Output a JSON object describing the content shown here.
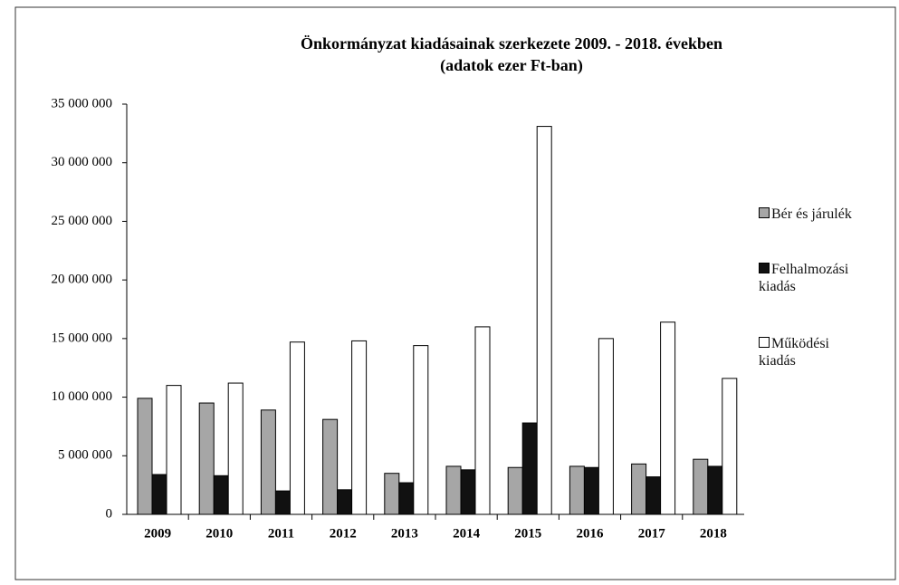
{
  "chart_data": {
    "type": "bar",
    "title": "Önkormányzat kiadásainak szerkezete 2009. - 2018. években",
    "subtitle": "(adatok ezer Ft-ban)",
    "categories": [
      "2009",
      "2010",
      "2011",
      "2012",
      "2013",
      "2014",
      "2015",
      "2016",
      "2017",
      "2018"
    ],
    "series": [
      {
        "name": "Bér és járulék",
        "color": "#a6a6a6",
        "values": [
          9900000,
          9500000,
          8900000,
          8100000,
          3500000,
          4100000,
          4000000,
          4100000,
          4300000,
          4700000
        ]
      },
      {
        "name": "Felhalmozási kiadás",
        "color": "#111111",
        "values": [
          3400000,
          3300000,
          2000000,
          2100000,
          2700000,
          3800000,
          7800000,
          4000000,
          3200000,
          4100000
        ]
      },
      {
        "name": "Működési kiadás",
        "color": "#ffffff",
        "values": [
          11000000,
          11200000,
          14700000,
          14800000,
          14400000,
          16000000,
          33100000,
          15000000,
          16400000,
          11600000
        ]
      }
    ],
    "ylim": [
      0,
      35000000
    ],
    "yticks": [
      0,
      {
        "value": 5000000,
        "label": "5 000 000"
      },
      {
        "value": 10000000,
        "label": "10 000 000"
      },
      {
        "value": 15000000,
        "label": "15 000 000"
      },
      {
        "value": 20000000,
        "label": "20 000 000"
      },
      {
        "value": 25000000,
        "label": "25 000 000"
      },
      {
        "value": 30000000,
        "label": "30 000 000"
      },
      {
        "value": 35000000,
        "label": "35 000 000"
      }
    ],
    "grid": false,
    "legend": "right"
  }
}
